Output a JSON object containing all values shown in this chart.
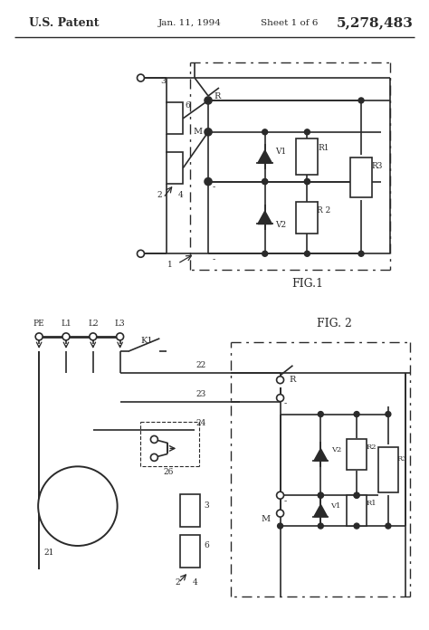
{
  "title_left": "U.S. Patent",
  "title_date": "Jan. 11, 1994",
  "title_sheet": "Sheet 1 of 6",
  "title_patent": "5,278,483",
  "fig1_label": "FIG.1",
  "fig2_label": "FIG. 2",
  "background_color": "#ffffff",
  "line_color": "#2a2a2a"
}
